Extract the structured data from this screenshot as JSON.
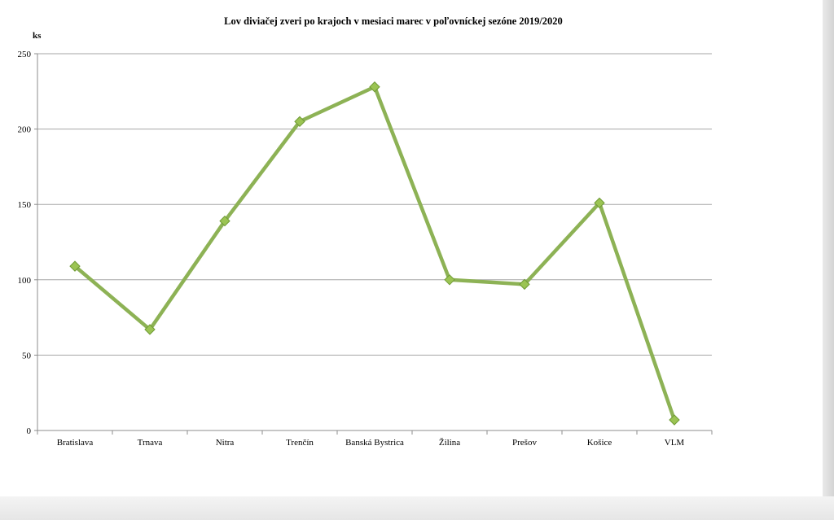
{
  "chart_data": {
    "type": "line",
    "title": "Lov diviačej zveri po krajoch v mesiaci marec v poľovníckej sezóne 2019/2020",
    "ylabel": "ks",
    "xlabel": "",
    "categories": [
      "Bratislava",
      "Trnava",
      "Nitra",
      "Trenčín",
      "Banská Bystrica",
      "Žilina",
      "Prešov",
      "Košice",
      "VLM"
    ],
    "series": [
      {
        "values": [
          109,
          67,
          139,
          205,
          228,
          100,
          97,
          151,
          7
        ]
      }
    ],
    "ylim": [
      0,
      250
    ],
    "yticks": [
      0,
      50,
      100,
      150,
      200,
      250
    ],
    "grid": true,
    "legend": "none",
    "colors": {
      "line": "#8db255",
      "marker": "#9bc453",
      "marker_edge": "#6f9a35",
      "grid": "#a6a6a6"
    }
  }
}
